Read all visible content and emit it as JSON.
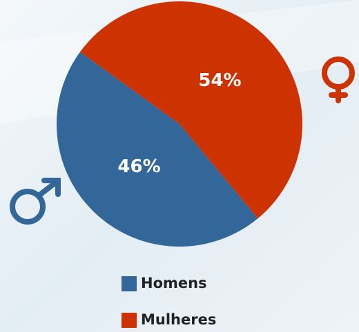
{
  "chart_data": {
    "type": "pie",
    "categories": [
      "Homens",
      "Mulheres"
    ],
    "values": [
      46,
      54
    ],
    "value_labels": [
      "46%",
      "54%"
    ],
    "colors": [
      "#336699",
      "#cc3300"
    ],
    "legend": "bottom"
  }
}
